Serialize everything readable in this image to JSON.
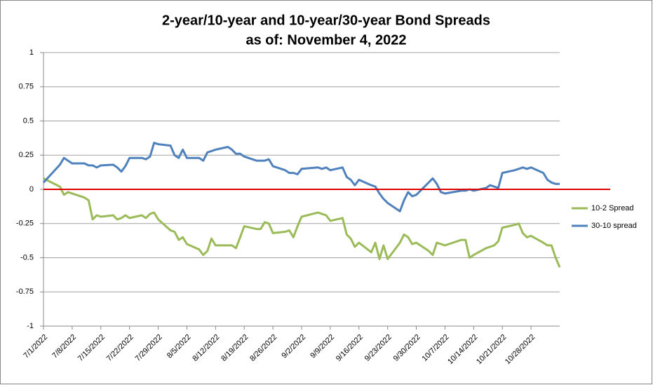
{
  "chart_data": {
    "type": "line",
    "title": [
      "2-year/10-year and 10-year/30-year Bond Spreads",
      "as of:  November 4, 2022"
    ],
    "x": [
      "7/1/2022",
      "7/5/2022",
      "7/6/2022",
      "7/7/2022",
      "7/8/2022",
      "7/11/2022",
      "7/12/2022",
      "7/13/2022",
      "7/14/2022",
      "7/15/2022",
      "7/18/2022",
      "7/19/2022",
      "7/20/2022",
      "7/21/2022",
      "7/22/2022",
      "7/25/2022",
      "7/26/2022",
      "7/27/2022",
      "7/28/2022",
      "7/29/2022",
      "8/1/2022",
      "8/2/2022",
      "8/3/2022",
      "8/4/2022",
      "8/5/2022",
      "8/8/2022",
      "8/9/2022",
      "8/10/2022",
      "8/11/2022",
      "8/12/2022",
      "8/15/2022",
      "8/16/2022",
      "8/17/2022",
      "8/18/2022",
      "8/19/2022",
      "8/22/2022",
      "8/23/2022",
      "8/24/2022",
      "8/25/2022",
      "8/26/2022",
      "8/29/2022",
      "8/30/2022",
      "8/31/2022",
      "9/1/2022",
      "9/2/2022",
      "9/6/2022",
      "9/7/2022",
      "9/8/2022",
      "9/9/2022",
      "9/12/2022",
      "9/13/2022",
      "9/14/2022",
      "9/15/2022",
      "9/16/2022",
      "9/19/2022",
      "9/20/2022",
      "9/21/2022",
      "9/22/2022",
      "9/23/2022",
      "9/26/2022",
      "9/27/2022",
      "9/28/2022",
      "9/29/2022",
      "9/30/2022",
      "10/3/2022",
      "10/4/2022",
      "10/5/2022",
      "10/6/2022",
      "10/7/2022",
      "10/11/2022",
      "10/12/2022",
      "10/13/2022",
      "10/14/2022",
      "10/17/2022",
      "10/18/2022",
      "10/19/2022",
      "10/20/2022",
      "10/21/2022",
      "10/24/2022",
      "10/25/2022",
      "10/26/2022",
      "10/27/2022",
      "10/28/2022",
      "10/31/2022",
      "11/1/2022",
      "11/2/2022",
      "11/3/2022",
      "11/4/2022"
    ],
    "series": [
      {
        "name": "10-2 Spread",
        "color": "#9bbb59",
        "values": [
          0.08,
          0.02,
          -0.04,
          -0.02,
          -0.03,
          -0.06,
          -0.08,
          -0.22,
          -0.19,
          -0.2,
          -0.19,
          -0.22,
          -0.21,
          -0.19,
          -0.21,
          -0.19,
          -0.21,
          -0.18,
          -0.17,
          -0.22,
          -0.3,
          -0.31,
          -0.37,
          -0.35,
          -0.4,
          -0.44,
          -0.48,
          -0.45,
          -0.36,
          -0.41,
          -0.41,
          -0.41,
          -0.43,
          -0.35,
          -0.27,
          -0.29,
          -0.29,
          -0.24,
          -0.25,
          -0.32,
          -0.31,
          -0.3,
          -0.35,
          -0.27,
          -0.2,
          -0.17,
          -0.18,
          -0.19,
          -0.23,
          -0.21,
          -0.33,
          -0.36,
          -0.42,
          -0.39,
          -0.46,
          -0.39,
          -0.51,
          -0.41,
          -0.51,
          -0.39,
          -0.33,
          -0.35,
          -0.4,
          -0.39,
          -0.45,
          -0.48,
          -0.39,
          -0.4,
          -0.41,
          -0.37,
          -0.37,
          -0.5,
          -0.48,
          -0.43,
          -0.42,
          -0.41,
          -0.38,
          -0.28,
          -0.26,
          -0.25,
          -0.32,
          -0.35,
          -0.34,
          -0.39,
          -0.41,
          -0.41,
          -0.5,
          -0.57
        ]
      },
      {
        "name": "30-10 spread",
        "color": "#4f81bd",
        "values": [
          0.05,
          0.18,
          0.23,
          0.21,
          0.19,
          0.19,
          0.175,
          0.175,
          0.16,
          0.175,
          0.18,
          0.16,
          0.13,
          0.17,
          0.23,
          0.23,
          0.22,
          0.24,
          0.34,
          0.33,
          0.32,
          0.25,
          0.23,
          0.29,
          0.23,
          0.23,
          0.21,
          0.27,
          0.28,
          0.29,
          0.31,
          0.29,
          0.26,
          0.26,
          0.24,
          0.21,
          0.21,
          0.21,
          0.22,
          0.17,
          0.14,
          0.12,
          0.12,
          0.11,
          0.15,
          0.16,
          0.15,
          0.16,
          0.14,
          0.16,
          0.09,
          0.07,
          0.03,
          0.07,
          0.03,
          0.02,
          -0.03,
          -0.07,
          -0.1,
          -0.16,
          -0.08,
          -0.02,
          -0.05,
          -0.04,
          0.05,
          0.08,
          0.04,
          -0.02,
          -0.03,
          -0.01,
          -0.01,
          0.0,
          -0.01,
          0.01,
          0.03,
          0.02,
          0.01,
          0.12,
          0.14,
          0.15,
          0.16,
          0.15,
          0.16,
          0.12,
          0.07,
          0.05,
          0.04,
          0.04
        ]
      }
    ],
    "reference_line": {
      "y": 0,
      "color": "#e00000"
    },
    "xlim": [
      "7/1/2022",
      "11/4/2022"
    ],
    "xticks": [
      "7/1/2022",
      "7/8/2022",
      "7/15/2022",
      "7/22/2022",
      "7/29/2022",
      "8/5/2022",
      "8/12/2022",
      "8/19/2022",
      "8/26/2022",
      "9/2/2022",
      "9/9/2022",
      "9/16/2022",
      "9/23/2022",
      "9/30/2022",
      "10/7/2022",
      "10/14/2022",
      "10/21/2022",
      "10/28/2022"
    ],
    "ylim": [
      -1,
      1
    ],
    "yticks": [
      -1,
      -0.75,
      -0.5,
      -0.25,
      0,
      0.25,
      0.5,
      0.75,
      1
    ],
    "grid": true,
    "legend": "right"
  }
}
